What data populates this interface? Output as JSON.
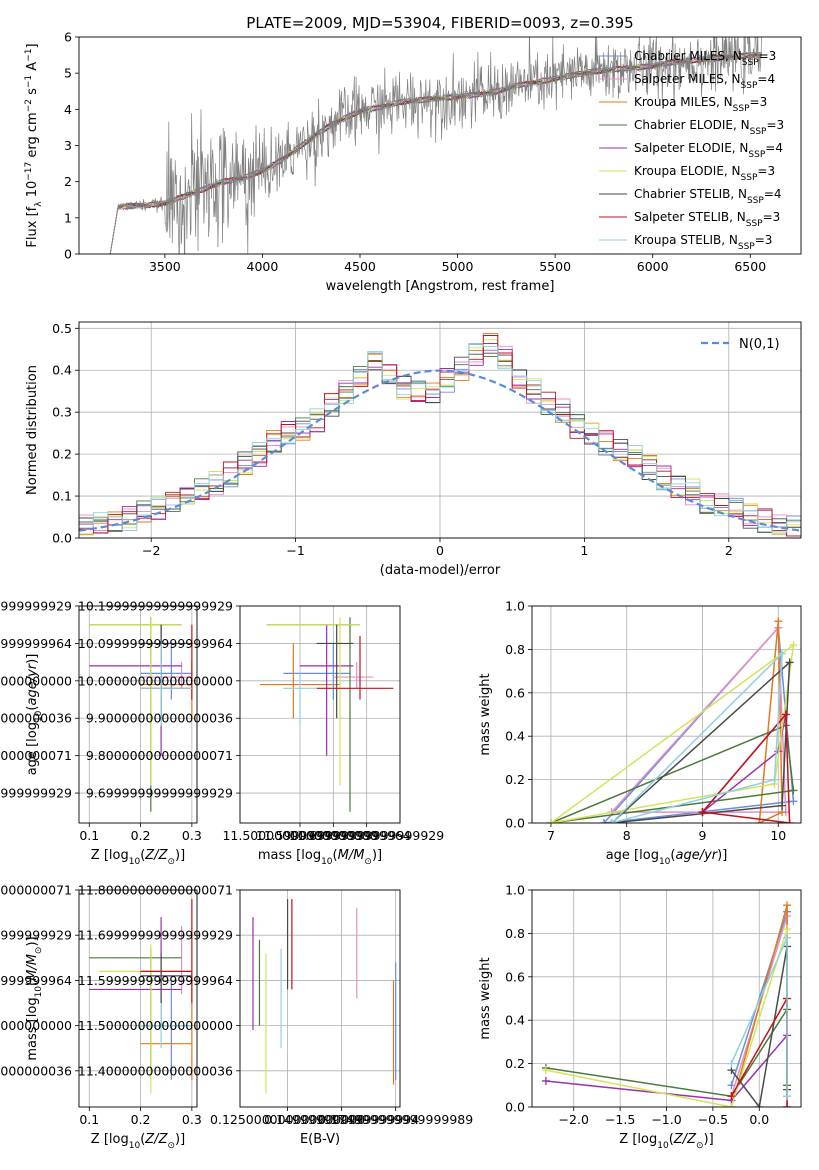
{
  "figure": {
    "title": "PLATE=2009, MJD=53904, FIBERID=0093, z=0.395"
  },
  "colors": {
    "Chabrier MILES": "#6a8fd8",
    "Salpeter MILES": "#e58fc8",
    "Kroupa MILES": "#e07a1f",
    "Chabrier ELODIE": "#4a7a3a",
    "Salpeter ELODIE": "#9a2fb0",
    "Kroupa ELODIE": "#d4e35a",
    "Chabrier STELIB": "#4a4a4a",
    "Salpeter STELIB": "#c0141c",
    "Kroupa STELIB": "#8fd0e0",
    "data": "#808080",
    "normal": "#5b8bd8"
  },
  "chart_data": [
    {
      "id": "spectrum",
      "type": "line",
      "xlabel": "wavelength [Angstrom, rest frame]",
      "ylabel": "Flux [f_λ 10^-17 erg cm^-2 s^-1 A^-1]",
      "xlim": [
        3060,
        6760
      ],
      "ylim": [
        0,
        6
      ],
      "xticks": [
        3500,
        4000,
        4500,
        5000,
        5500,
        6000,
        6500
      ],
      "yticks": [
        0,
        1,
        2,
        3,
        4,
        5,
        6
      ],
      "grid": false,
      "legend_position": "upper-right",
      "data_range": [
        3220,
        6560
      ],
      "data_anchors": {
        "x": [
          3220,
          3260,
          3400,
          3500,
          3600,
          3700,
          3800,
          3900,
          4000,
          4100,
          4200,
          4300,
          4400,
          4500,
          4600,
          4700,
          4800,
          4900,
          5000,
          5100,
          5200,
          5300,
          5400,
          5500,
          5600,
          5700,
          5800,
          5900,
          6000,
          6100,
          6200,
          6300,
          6400,
          6500,
          6560
        ],
        "y": [
          0.0,
          1.3,
          1.35,
          1.4,
          1.6,
          1.8,
          2.0,
          2.1,
          2.3,
          2.6,
          3.0,
          3.4,
          3.7,
          3.95,
          4.05,
          4.2,
          4.25,
          4.3,
          4.35,
          4.4,
          4.5,
          4.65,
          4.75,
          4.85,
          4.95,
          5.05,
          5.1,
          5.15,
          5.2,
          5.3,
          5.35,
          5.4,
          5.45,
          5.5,
          5.5
        ]
      },
      "legend": [
        {
          "name": "Chabrier MILES",
          "nssp": "3"
        },
        {
          "name": "Salpeter MILES",
          "nssp": "4"
        },
        {
          "name": "Kroupa MILES",
          "nssp": "3"
        },
        {
          "name": "Chabrier ELODIE",
          "nssp": "3"
        },
        {
          "name": "Salpeter ELODIE",
          "nssp": "4"
        },
        {
          "name": "Kroupa ELODIE",
          "nssp": "3"
        },
        {
          "name": "Chabrier STELIB",
          "nssp": "4"
        },
        {
          "name": "Salpeter STELIB",
          "nssp": "3"
        },
        {
          "name": "Kroupa STELIB",
          "nssp": "3"
        }
      ]
    },
    {
      "id": "residuals",
      "type": "line",
      "xlabel": "(data-model)/error",
      "ylabel": "Normed distribution",
      "xlim": [
        -2.5,
        2.5
      ],
      "ylim": [
        0,
        0.515
      ],
      "xticks": [
        -2,
        -1,
        0,
        1,
        2
      ],
      "yticks": [
        0.0,
        0.1,
        0.2,
        0.3,
        0.4,
        0.5
      ],
      "grid": true,
      "legend": [
        {
          "name": "N(0,1)"
        }
      ],
      "legend_position": "upper-right",
      "bins": [
        -2.5,
        2.5,
        50
      ],
      "histogram_base": [
        0.03,
        0.03,
        0.04,
        0.05,
        0.06,
        0.07,
        0.09,
        0.1,
        0.11,
        0.13,
        0.15,
        0.18,
        0.2,
        0.23,
        0.25,
        0.26,
        0.28,
        0.32,
        0.35,
        0.38,
        0.42,
        0.39,
        0.36,
        0.35,
        0.34,
        0.38,
        0.4,
        0.44,
        0.46,
        0.43,
        0.38,
        0.35,
        0.32,
        0.3,
        0.27,
        0.25,
        0.23,
        0.21,
        0.19,
        0.17,
        0.14,
        0.12,
        0.11,
        0.09,
        0.08,
        0.07,
        0.05,
        0.04,
        0.03,
        0.02
      ]
    },
    {
      "id": "age-vs-Z",
      "type": "scatter",
      "xlabel": "Z [log10(Z/Z_sun)]",
      "ylabel": "age  [log10(age/yr)]",
      "xlim": [
        0.08,
        0.31
      ],
      "ylim": [
        9.62,
        10.2
      ],
      "xticks": [
        0.1,
        0.2,
        0.3
      ],
      "yticks": [
        9.7,
        9.8,
        9.9,
        10.0,
        10.1,
        10.2
      ],
      "grid": true,
      "points": [
        {
          "series": "Chabrier MILES",
          "x": 0.26,
          "y": 10.02,
          "xerr": [
            0.2,
            0.3
          ],
          "yerr": [
            9.95,
            10.1
          ]
        },
        {
          "series": "Salpeter MILES",
          "x": 0.28,
          "y": 10.01,
          "xerr": [
            0.2,
            0.3
          ],
          "yerr": [
            9.98,
            10.05
          ]
        },
        {
          "series": "Kroupa MILES",
          "x": 0.3,
          "y": 9.99,
          "xerr": [
            0.2,
            0.3
          ],
          "yerr": [
            9.9,
            10.05
          ]
        },
        {
          "series": "Chabrier ELODIE",
          "x": 0.22,
          "y": 10.15,
          "xerr": [
            0.1,
            0.28
          ],
          "yerr": [
            9.65,
            10.17
          ]
        },
        {
          "series": "Salpeter ELODIE",
          "x": 0.24,
          "y": 10.04,
          "xerr": [
            0.1,
            0.28
          ],
          "yerr": [
            9.8,
            10.15
          ]
        },
        {
          "series": "Kroupa ELODIE",
          "x": 0.22,
          "y": 10.15,
          "xerr": [
            0.1,
            0.28
          ],
          "yerr": [
            9.72,
            10.17
          ]
        },
        {
          "series": "Chabrier STELIB",
          "x": 0.24,
          "y": 10.1,
          "xerr": [
            0.2,
            0.3
          ],
          "yerr": [
            9.9,
            10.15
          ]
        },
        {
          "series": "Salpeter STELIB",
          "x": 0.3,
          "y": 9.98,
          "xerr": [
            0.2,
            0.3
          ],
          "yerr": [
            9.95,
            10.15
          ]
        },
        {
          "series": "Kroupa STELIB",
          "x": 0.24,
          "y": 9.98,
          "xerr": [
            0.2,
            0.3
          ],
          "yerr": [
            9.88,
            10.1
          ]
        }
      ]
    },
    {
      "id": "age-vs-mass",
      "type": "scatter",
      "xlabel": "mass [log10(M/M_sun)]",
      "ylabel": "",
      "xlim": [
        11.32,
        11.8
      ],
      "ylim": [
        9.62,
        10.2
      ],
      "xticks": [
        11.5,
        11.6,
        11.7
      ],
      "yticks": [
        9.7,
        9.8,
        9.9,
        10.0,
        10.1,
        10.2
      ],
      "grid": true,
      "points": [
        {
          "series": "Chabrier MILES",
          "x": 11.6,
          "y": 10.02,
          "xerr": [
            11.45,
            11.65
          ],
          "yerr": [
            9.95,
            10.1
          ]
        },
        {
          "series": "Salpeter MILES",
          "x": 11.67,
          "y": 10.01,
          "xerr": [
            11.6,
            11.72
          ],
          "yerr": [
            9.98,
            10.05
          ]
        },
        {
          "series": "Kroupa MILES",
          "x": 11.48,
          "y": 9.99,
          "xerr": [
            11.38,
            11.62
          ],
          "yerr": [
            9.9,
            10.1
          ]
        },
        {
          "series": "Chabrier ELODIE",
          "x": 11.65,
          "y": 10.15,
          "xerr": [
            11.4,
            11.68
          ],
          "yerr": [
            9.65,
            10.17
          ]
        },
        {
          "series": "Salpeter ELODIE",
          "x": 11.58,
          "y": 10.04,
          "xerr": [
            11.5,
            11.66
          ],
          "yerr": [
            9.8,
            10.15
          ]
        },
        {
          "series": "Kroupa ELODIE",
          "x": 11.62,
          "y": 10.15,
          "xerr": [
            11.4,
            11.68
          ],
          "yerr": [
            9.72,
            10.17
          ]
        },
        {
          "series": "Chabrier STELIB",
          "x": 11.61,
          "y": 10.1,
          "xerr": [
            11.55,
            11.66
          ],
          "yerr": [
            9.9,
            10.15
          ]
        },
        {
          "series": "Salpeter STELIB",
          "x": 11.68,
          "y": 9.98,
          "xerr": [
            11.55,
            11.78
          ],
          "yerr": [
            9.95,
            10.12
          ]
        },
        {
          "series": "Kroupa STELIB",
          "x": 11.5,
          "y": 9.98,
          "xerr": [
            11.45,
            11.55
          ],
          "yerr": [
            9.88,
            10.02
          ]
        }
      ]
    },
    {
      "id": "mass-weight-vs-age",
      "type": "line",
      "xlabel": "age  [log10(age/yr)]",
      "ylabel": "mass weight",
      "xlim": [
        6.75,
        10.3
      ],
      "ylim": [
        0,
        1
      ],
      "xticks": [
        7,
        8,
        9,
        10
      ],
      "yticks": [
        0.0,
        0.2,
        0.4,
        0.6,
        0.8,
        1.0
      ],
      "grid": true,
      "series": [
        {
          "name": "Chabrier MILES",
          "x": [
            7.7,
            10.0,
            10.2,
            7.7
          ],
          "y": [
            0.0,
            0.9,
            0.1,
            0.0
          ]
        },
        {
          "name": "Salpeter MILES",
          "x": [
            7.8,
            10.0,
            10.1,
            7.8
          ],
          "y": [
            0.05,
            0.9,
            0.05,
            0.05
          ]
        },
        {
          "name": "Kroupa MILES",
          "x": [
            9.75,
            10.0,
            10.05,
            9.75
          ],
          "y": [
            0.0,
            0.93,
            0.05,
            0.0
          ]
        },
        {
          "name": "Chabrier ELODIE",
          "x": [
            7.0,
            10.1,
            10.2,
            7.0
          ],
          "y": [
            0.0,
            0.45,
            0.15,
            0.0
          ]
        },
        {
          "name": "Salpeter ELODIE",
          "x": [
            9.0,
            10.0,
            10.1,
            9.0
          ],
          "y": [
            0.05,
            0.33,
            0.5,
            0.05
          ]
        },
        {
          "name": "Kroupa ELODIE",
          "x": [
            7.0,
            9.95,
            10.2,
            7.0
          ],
          "y": [
            0.0,
            0.18,
            0.82,
            0.0
          ]
        },
        {
          "name": "Chabrier STELIB",
          "x": [
            7.8,
            10.05,
            10.15,
            7.8
          ],
          "y": [
            0.0,
            0.08,
            0.74,
            0.0
          ]
        },
        {
          "name": "Salpeter STELIB",
          "x": [
            9.0,
            10.1,
            10.15,
            9.0
          ],
          "y": [
            0.05,
            0.5,
            0.0,
            0.05
          ]
        },
        {
          "name": "Kroupa STELIB",
          "x": [
            7.8,
            9.95,
            10.05,
            7.8
          ],
          "y": [
            0.0,
            0.2,
            0.78,
            0.0
          ]
        }
      ]
    },
    {
      "id": "mass-vs-Z",
      "type": "scatter",
      "xlabel": "Z [log10(Z/Z_sun)]",
      "ylabel": "mass [log10(M/M_sun)]",
      "xlim": [
        0.08,
        0.31
      ],
      "ylim": [
        11.32,
        11.8
      ],
      "xticks": [
        0.1,
        0.2,
        0.3
      ],
      "yticks": [
        11.4,
        11.5,
        11.6,
        11.7,
        11.8
      ],
      "grid": true,
      "points": [
        {
          "series": "Chabrier MILES",
          "x": 0.26,
          "y": 11.5,
          "xerr": [
            0.2,
            0.3
          ],
          "yerr": [
            11.38,
            11.6
          ]
        },
        {
          "series": "Salpeter MILES",
          "x": 0.28,
          "y": 11.62,
          "xerr": [
            0.2,
            0.3
          ],
          "yerr": [
            11.57,
            11.72
          ]
        },
        {
          "series": "Kroupa MILES",
          "x": 0.3,
          "y": 11.46,
          "xerr": [
            0.2,
            0.3
          ],
          "yerr": [
            11.38,
            11.62
          ]
        },
        {
          "series": "Chabrier ELODIE",
          "x": 0.22,
          "y": 11.65,
          "xerr": [
            0.1,
            0.28
          ],
          "yerr": [
            11.4,
            11.67
          ]
        },
        {
          "series": "Salpeter ELODIE",
          "x": 0.24,
          "y": 11.58,
          "xerr": [
            0.1,
            0.28
          ],
          "yerr": [
            11.5,
            11.74
          ]
        },
        {
          "series": "Kroupa ELODIE",
          "x": 0.22,
          "y": 11.62,
          "xerr": [
            0.12,
            0.28
          ],
          "yerr": [
            11.35,
            11.68
          ]
        },
        {
          "series": "Chabrier STELIB",
          "x": 0.24,
          "y": 11.61,
          "xerr": [
            0.2,
            0.3
          ],
          "yerr": [
            11.55,
            11.66
          ]
        },
        {
          "series": "Salpeter STELIB",
          "x": 0.3,
          "y": 11.62,
          "xerr": [
            0.2,
            0.3
          ],
          "yerr": [
            11.55,
            11.78
          ]
        },
        {
          "series": "Kroupa STELIB",
          "x": 0.24,
          "y": 11.5,
          "xerr": [
            0.2,
            0.3
          ],
          "yerr": [
            11.45,
            11.55
          ]
        }
      ]
    },
    {
      "id": "mass-vs-ebv",
      "type": "scatter",
      "xlabel": "E(B-V)",
      "ylabel": "",
      "xlim": [
        0.103,
        0.177
      ],
      "ylim": [
        11.32,
        11.8
      ],
      "xticks": [
        0.125,
        0.15,
        0.175
      ],
      "yticks": [
        11.4,
        11.5,
        11.6,
        11.7,
        11.8
      ],
      "grid": true,
      "points": [
        {
          "series": "Chabrier MILES",
          "x": 0.175,
          "y": 11.5,
          "yerr": [
            11.38,
            11.64
          ]
        },
        {
          "series": "Salpeter MILES",
          "x": 0.157,
          "y": 11.65,
          "yerr": [
            11.56,
            11.76
          ]
        },
        {
          "series": "Kroupa MILES",
          "x": 0.174,
          "y": 11.46,
          "yerr": [
            11.37,
            11.6
          ]
        },
        {
          "series": "Chabrier ELODIE",
          "x": 0.112,
          "y": 11.62,
          "yerr": [
            11.5,
            11.69
          ]
        },
        {
          "series": "Salpeter ELODIE",
          "x": 0.109,
          "y": 11.6,
          "yerr": [
            11.49,
            11.74
          ]
        },
        {
          "series": "Kroupa ELODIE",
          "x": 0.115,
          "y": 11.55,
          "yerr": [
            11.35,
            11.66
          ]
        },
        {
          "series": "Chabrier STELIB",
          "x": 0.125,
          "y": 11.65,
          "yerr": [
            11.58,
            11.78
          ]
        },
        {
          "series": "Salpeter STELIB",
          "x": 0.127,
          "y": 11.68,
          "yerr": [
            11.58,
            11.78
          ]
        },
        {
          "series": "Kroupa STELIB",
          "x": 0.122,
          "y": 11.55,
          "yerr": [
            11.45,
            11.67
          ]
        }
      ]
    },
    {
      "id": "mass-weight-vs-Z",
      "type": "line",
      "xlabel": "Z [log10(Z/Z_sun)]",
      "ylabel": "mass weight",
      "xlim": [
        -2.45,
        0.45
      ],
      "ylim": [
        0,
        1
      ],
      "xticks": [
        -2.0,
        -1.5,
        -1.0,
        -0.5,
        0.0
      ],
      "yticks": [
        0.0,
        0.2,
        0.4,
        0.6,
        0.8,
        1.0
      ],
      "grid": true,
      "series": [
        {
          "name": "Chabrier MILES",
          "x": [
            -0.3,
            0.3,
            0.3
          ],
          "y": [
            0.1,
            0.9,
            0.0
          ]
        },
        {
          "name": "Salpeter MILES",
          "x": [
            -0.3,
            0.3,
            0.3
          ],
          "y": [
            0.05,
            0.88,
            0.0
          ]
        },
        {
          "name": "Kroupa MILES",
          "x": [
            -0.3,
            0.3,
            0.3
          ],
          "y": [
            0.0,
            0.93,
            0.05
          ]
        },
        {
          "name": "Chabrier ELODIE",
          "x": [
            -2.3,
            -0.3,
            0.3,
            0.3
          ],
          "y": [
            0.18,
            0.05,
            0.45,
            0.1
          ]
        },
        {
          "name": "Salpeter ELODIE",
          "x": [
            -2.3,
            -0.3,
            0.3,
            0.3
          ],
          "y": [
            0.12,
            0.03,
            0.33,
            0.5
          ]
        },
        {
          "name": "Kroupa ELODIE",
          "x": [
            -2.3,
            -0.3,
            0.3,
            0.3
          ],
          "y": [
            0.17,
            0.0,
            0.82,
            0.05
          ]
        },
        {
          "name": "Chabrier STELIB",
          "x": [
            -0.3,
            0.0,
            0.3,
            0.3
          ],
          "y": [
            0.17,
            0.0,
            0.74,
            0.08
          ]
        },
        {
          "name": "Salpeter STELIB",
          "x": [
            -0.3,
            0.3,
            0.3
          ],
          "y": [
            0.05,
            0.5,
            0.0
          ]
        },
        {
          "name": "Kroupa STELIB",
          "x": [
            -0.3,
            0.3,
            0.3
          ],
          "y": [
            0.2,
            0.78,
            0.05
          ]
        }
      ]
    }
  ]
}
